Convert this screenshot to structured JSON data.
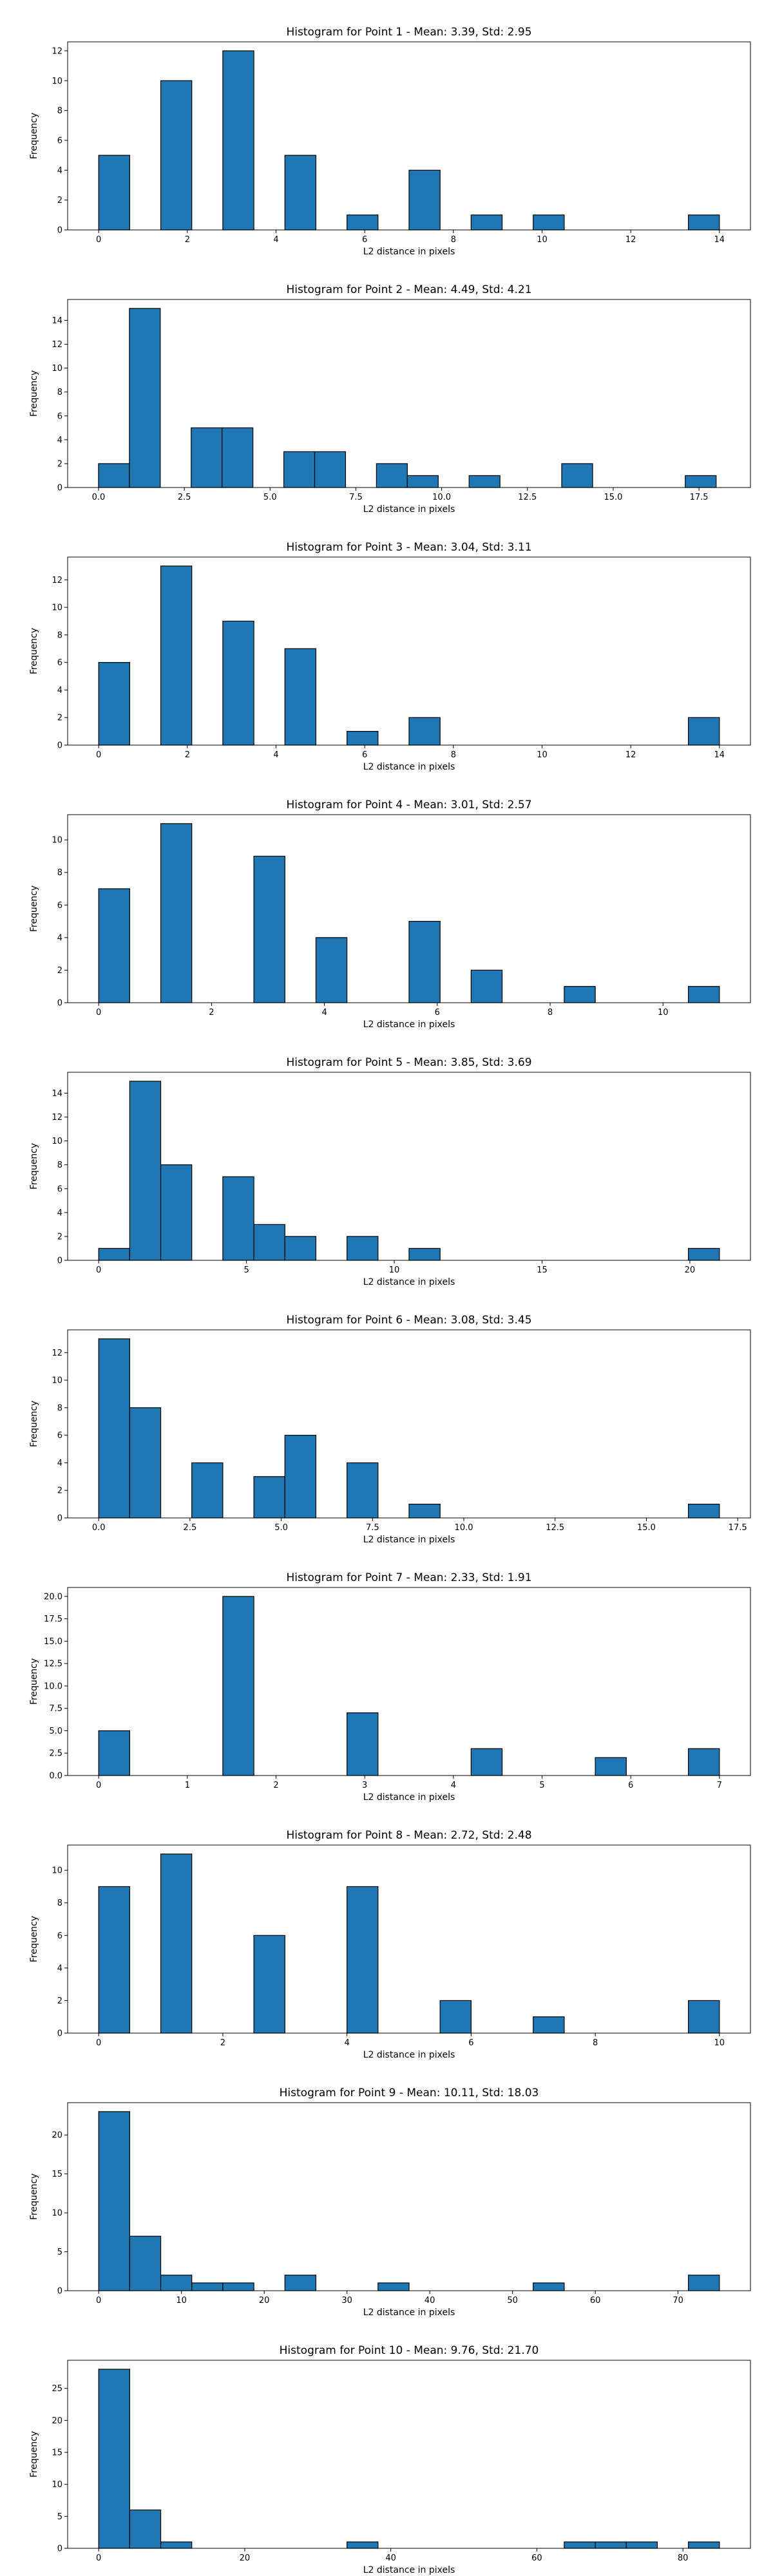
{
  "bar_color": "#1f77b4",
  "edge_color": "#000000",
  "chart_data": [
    {
      "type": "bar",
      "title": "Histogram for Point 1 - Mean: 3.39, Std: 2.95",
      "xlabel": "L2 distance in pixels",
      "ylabel": "Frequency",
      "xlim": [
        -0.7,
        14.7
      ],
      "ylim": [
        0,
        12.6
      ],
      "xticks": [
        0,
        2,
        4,
        6,
        8,
        10,
        12,
        14
      ],
      "xtick_labels": [
        "0",
        "2",
        "4",
        "6",
        "8",
        "10",
        "12",
        "14"
      ],
      "yticks": [
        0,
        2,
        4,
        6,
        8,
        10,
        12
      ],
      "ytick_labels": [
        "0",
        "2",
        "4",
        "6",
        "8",
        "10",
        "12"
      ],
      "bins": [
        [
          0,
          0.7,
          5
        ],
        [
          1.4,
          2.1,
          10
        ],
        [
          2.8,
          3.5,
          12
        ],
        [
          4.2,
          4.9,
          5
        ],
        [
          5.6,
          6.3,
          1
        ],
        [
          7.0,
          7.7,
          4
        ],
        [
          8.4,
          9.1,
          1
        ],
        [
          9.8,
          10.5,
          1
        ],
        [
          13.3,
          14.0,
          1
        ]
      ]
    },
    {
      "type": "bar",
      "title": "Histogram for Point 2 - Mean: 4.49, Std: 4.21",
      "xlabel": "L2 distance in pixels",
      "ylabel": "Frequency",
      "xlim": [
        -0.9,
        19.0
      ],
      "ylim": [
        0,
        15.75
      ],
      "xticks": [
        0,
        2.5,
        5,
        7.5,
        10,
        12.5,
        15,
        17.5
      ],
      "xtick_labels": [
        "0.0",
        "2.5",
        "5.0",
        "7.5",
        "10.0",
        "12.5",
        "15.0",
        "17.5"
      ],
      "yticks": [
        0,
        2,
        4,
        6,
        8,
        10,
        12,
        14
      ],
      "ytick_labels": [
        "0",
        "2",
        "4",
        "6",
        "8",
        "10",
        "12",
        "14"
      ],
      "bins": [
        [
          0,
          0.9,
          2
        ],
        [
          0.9,
          1.8,
          15
        ],
        [
          2.7,
          3.6,
          5
        ],
        [
          3.6,
          4.5,
          5
        ],
        [
          5.4,
          6.3,
          3
        ],
        [
          6.3,
          7.2,
          3
        ],
        [
          8.1,
          9.0,
          2
        ],
        [
          9.0,
          9.9,
          1
        ],
        [
          10.8,
          11.7,
          1
        ],
        [
          13.5,
          14.4,
          2
        ],
        [
          17.1,
          18.0,
          1
        ]
      ]
    },
    {
      "type": "bar",
      "title": "Histogram for Point 3 - Mean: 3.04, Std: 3.11",
      "xlabel": "L2 distance in pixels",
      "ylabel": "Frequency",
      "xlim": [
        -0.7,
        14.7
      ],
      "ylim": [
        0,
        13.65
      ],
      "xticks": [
        0,
        2,
        4,
        6,
        8,
        10,
        12,
        14
      ],
      "xtick_labels": [
        "0",
        "2",
        "4",
        "6",
        "8",
        "10",
        "12",
        "14"
      ],
      "yticks": [
        0,
        2,
        4,
        6,
        8,
        10,
        12
      ],
      "ytick_labels": [
        "0",
        "2",
        "4",
        "6",
        "8",
        "10",
        "12"
      ],
      "bins": [
        [
          0,
          0.7,
          6
        ],
        [
          1.4,
          2.1,
          13
        ],
        [
          2.8,
          3.5,
          9
        ],
        [
          4.2,
          4.9,
          7
        ],
        [
          5.6,
          6.3,
          1
        ],
        [
          7.0,
          7.7,
          2
        ],
        [
          13.3,
          14.0,
          2
        ]
      ]
    },
    {
      "type": "bar",
      "title": "Histogram for Point 4 - Mean: 3.01, Std: 2.57",
      "xlabel": "L2 distance in pixels",
      "ylabel": "Frequency",
      "xlim": [
        -0.55,
        11.55
      ],
      "ylim": [
        0,
        11.55
      ],
      "xticks": [
        0,
        2,
        4,
        6,
        8,
        10
      ],
      "xtick_labels": [
        "0",
        "2",
        "4",
        "6",
        "8",
        "10"
      ],
      "yticks": [
        0,
        2,
        4,
        6,
        8,
        10
      ],
      "ytick_labels": [
        "0",
        "2",
        "4",
        "6",
        "8",
        "10"
      ],
      "bins": [
        [
          0,
          0.55,
          7
        ],
        [
          1.1,
          1.65,
          11
        ],
        [
          2.75,
          3.3,
          9
        ],
        [
          3.85,
          4.4,
          4
        ],
        [
          5.5,
          6.05,
          5
        ],
        [
          6.6,
          7.15,
          2
        ],
        [
          8.25,
          8.8,
          1
        ],
        [
          10.45,
          11.0,
          1
        ]
      ]
    },
    {
      "type": "bar",
      "title": "Histogram for Point 5 - Mean: 3.85, Std: 3.69",
      "xlabel": "L2 distance in pixels",
      "ylabel": "Frequency",
      "xlim": [
        -1.05,
        22.05
      ],
      "ylim": [
        0,
        15.75
      ],
      "xticks": [
        0,
        5,
        10,
        15,
        20
      ],
      "xtick_labels": [
        "0",
        "5",
        "10",
        "15",
        "20"
      ],
      "yticks": [
        0,
        2,
        4,
        6,
        8,
        10,
        12,
        14
      ],
      "ytick_labels": [
        "0",
        "2",
        "4",
        "6",
        "8",
        "10",
        "12",
        "14"
      ],
      "bins": [
        [
          0,
          1.05,
          1
        ],
        [
          1.05,
          2.1,
          15
        ],
        [
          2.1,
          3.15,
          8
        ],
        [
          4.2,
          5.25,
          7
        ],
        [
          5.25,
          6.3,
          3
        ],
        [
          6.3,
          7.35,
          2
        ],
        [
          8.4,
          9.45,
          2
        ],
        [
          10.5,
          11.55,
          1
        ],
        [
          19.95,
          21.0,
          1
        ]
      ]
    },
    {
      "type": "bar",
      "title": "Histogram for Point 6 - Mean: 3.08, Std: 3.45",
      "xlabel": "L2 distance in pixels",
      "ylabel": "Frequency",
      "xlim": [
        -0.85,
        17.85
      ],
      "ylim": [
        0,
        13.65
      ],
      "xticks": [
        0,
        2.5,
        5,
        7.5,
        10,
        12.5,
        15,
        17.5
      ],
      "xtick_labels": [
        "0.0",
        "2.5",
        "5.0",
        "7.5",
        "10.0",
        "12.5",
        "15.0",
        "17.5"
      ],
      "yticks": [
        0,
        2,
        4,
        6,
        8,
        10,
        12
      ],
      "ytick_labels": [
        "0",
        "2",
        "4",
        "6",
        "8",
        "10",
        "12"
      ],
      "bins": [
        [
          0,
          0.85,
          13
        ],
        [
          0.85,
          1.7,
          8
        ],
        [
          2.55,
          3.4,
          4
        ],
        [
          4.25,
          5.1,
          3
        ],
        [
          5.1,
          5.95,
          6
        ],
        [
          6.8,
          7.65,
          4
        ],
        [
          8.5,
          9.35,
          1
        ],
        [
          16.15,
          17.0,
          1
        ]
      ]
    },
    {
      "type": "bar",
      "title": "Histogram for Point 7 - Mean: 2.33, Std: 1.91",
      "xlabel": "L2 distance in pixels",
      "ylabel": "Frequency",
      "xlim": [
        -0.35,
        7.35
      ],
      "ylim": [
        0,
        21.0
      ],
      "xticks": [
        0,
        1,
        2,
        3,
        4,
        5,
        6,
        7
      ],
      "xtick_labels": [
        "0",
        "1",
        "2",
        "3",
        "4",
        "5",
        "6",
        "7"
      ],
      "yticks": [
        0,
        2.5,
        5,
        7.5,
        10,
        12.5,
        15,
        17.5,
        20
      ],
      "ytick_labels": [
        "0.0",
        "2.5",
        "5.0",
        "7.5",
        "10.0",
        "12.5",
        "15.0",
        "17.5",
        "20.0"
      ],
      "bins": [
        [
          0,
          0.35,
          5
        ],
        [
          1.4,
          1.75,
          20
        ],
        [
          2.8,
          3.15,
          7
        ],
        [
          4.2,
          4.55,
          3
        ],
        [
          5.6,
          5.95,
          2
        ],
        [
          6.65,
          7.0,
          3
        ]
      ]
    },
    {
      "type": "bar",
      "title": "Histogram for Point 8 - Mean: 2.72, Std: 2.48",
      "xlabel": "L2 distance in pixels",
      "ylabel": "Frequency",
      "xlim": [
        -0.5,
        10.5
      ],
      "ylim": [
        0,
        11.55
      ],
      "xticks": [
        0,
        2,
        4,
        6,
        8,
        10
      ],
      "xtick_labels": [
        "0",
        "2",
        "4",
        "6",
        "8",
        "10"
      ],
      "yticks": [
        0,
        2,
        4,
        6,
        8,
        10
      ],
      "ytick_labels": [
        "0",
        "2",
        "4",
        "6",
        "8",
        "10"
      ],
      "bins": [
        [
          0,
          0.5,
          9
        ],
        [
          1.0,
          1.5,
          11
        ],
        [
          2.5,
          3.0,
          6
        ],
        [
          4.0,
          4.5,
          9
        ],
        [
          5.5,
          6.0,
          2
        ],
        [
          7.0,
          7.5,
          1
        ],
        [
          9.5,
          10.0,
          2
        ]
      ]
    },
    {
      "type": "bar",
      "title": "Histogram for Point 9 - Mean: 10.11, Std: 18.03",
      "xlabel": "L2 distance in pixels",
      "ylabel": "Frequency",
      "xlim": [
        -3.75,
        78.75
      ],
      "ylim": [
        0,
        24.15
      ],
      "xticks": [
        0,
        10,
        20,
        30,
        40,
        50,
        60,
        70
      ],
      "xtick_labels": [
        "0",
        "10",
        "20",
        "30",
        "40",
        "50",
        "60",
        "70"
      ],
      "yticks": [
        0,
        5,
        10,
        15,
        20
      ],
      "ytick_labels": [
        "0",
        "5",
        "10",
        "15",
        "20"
      ],
      "bins": [
        [
          0,
          3.75,
          23
        ],
        [
          3.75,
          7.5,
          7
        ],
        [
          7.5,
          11.25,
          2
        ],
        [
          11.25,
          15.0,
          1
        ],
        [
          15.0,
          18.75,
          1
        ],
        [
          22.5,
          26.25,
          2
        ],
        [
          33.75,
          37.5,
          1
        ],
        [
          52.5,
          56.25,
          1
        ],
        [
          71.25,
          75.0,
          2
        ]
      ]
    },
    {
      "type": "bar",
      "title": "Histogram for Point 10 - Mean: 9.76, Std: 21.70",
      "xlabel": "L2 distance in pixels",
      "ylabel": "Frequency",
      "xlim": [
        -4.25,
        89.25
      ],
      "ylim": [
        0,
        29.4
      ],
      "xticks": [
        0,
        20,
        40,
        60,
        80
      ],
      "xtick_labels": [
        "0",
        "20",
        "40",
        "60",
        "80"
      ],
      "yticks": [
        0,
        5,
        10,
        15,
        20,
        25
      ],
      "ytick_labels": [
        "0",
        "5",
        "10",
        "15",
        "20",
        "25"
      ],
      "bins": [
        [
          0,
          4.25,
          28
        ],
        [
          4.25,
          8.5,
          6
        ],
        [
          8.5,
          12.75,
          1
        ],
        [
          34.0,
          38.25,
          1
        ],
        [
          63.75,
          68.0,
          1
        ],
        [
          68.0,
          72.25,
          1
        ],
        [
          72.25,
          76.5,
          1
        ],
        [
          80.75,
          85.0,
          1
        ]
      ]
    }
  ]
}
